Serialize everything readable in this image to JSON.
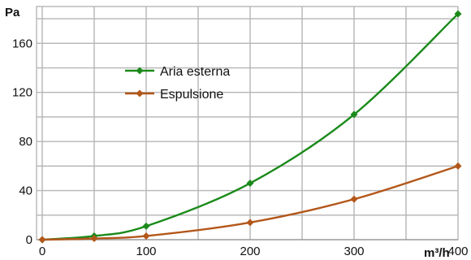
{
  "chart_data": {
    "type": "line",
    "ylabel": "Pa",
    "xlabel": "m³/h",
    "xlim": [
      0,
      400
    ],
    "ylim": [
      0,
      190
    ],
    "x_ticks": [
      0,
      100,
      200,
      300,
      400
    ],
    "y_ticks": [
      0,
      40,
      80,
      120,
      160
    ],
    "grid": true,
    "legend_position": "top-left inside",
    "series": [
      {
        "name": "Aria esterna",
        "color": "#1a8a1a",
        "marker": "diamond",
        "x": [
          0,
          50,
          100,
          200,
          300,
          400
        ],
        "y": [
          0,
          3,
          11,
          46,
          102,
          184
        ]
      },
      {
        "name": "Espulsione",
        "color": "#b3571a",
        "marker": "diamond",
        "x": [
          0,
          50,
          100,
          200,
          300,
          400
        ],
        "y": [
          0,
          1,
          3,
          14,
          33,
          60
        ]
      }
    ]
  }
}
